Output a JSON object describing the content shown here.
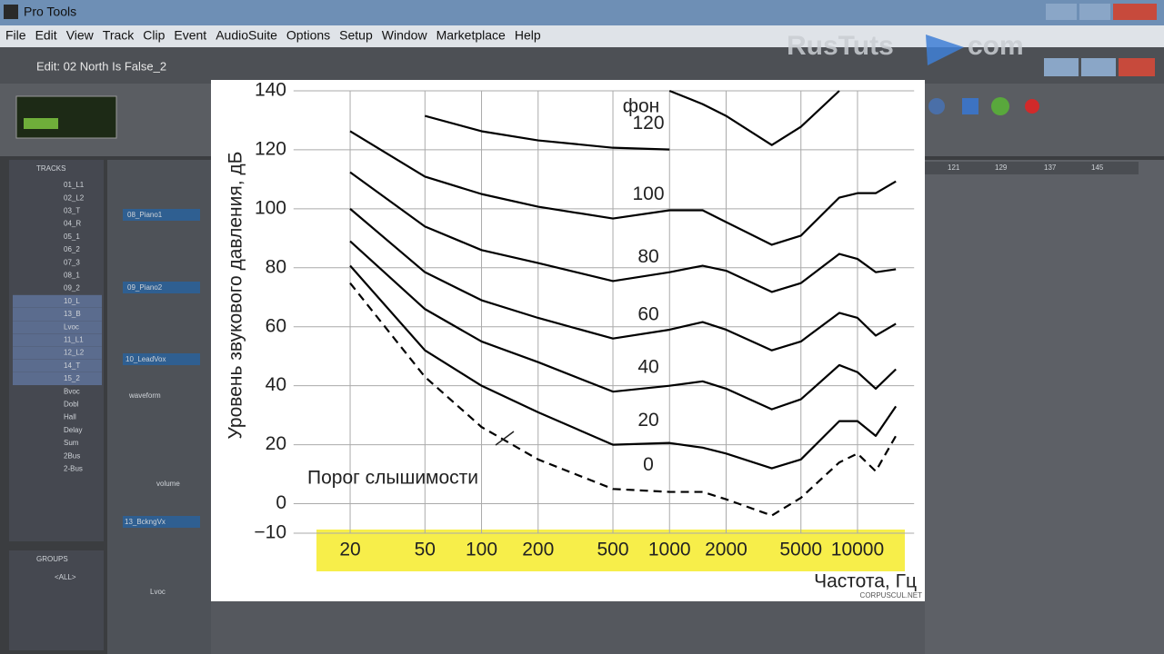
{
  "app": {
    "title": "Pro Tools",
    "menu": [
      "File",
      "Edit",
      "View",
      "Track",
      "Clip",
      "Event",
      "AudioSuite",
      "Options",
      "Setup",
      "Window",
      "Marketplace",
      "Help"
    ],
    "edit_title": "Edit: 02 North Is False_2",
    "watermark": [
      "RusTuts",
      "com"
    ],
    "tracks_header": "TRACKS",
    "track_list": [
      "01_L1",
      "02_L2",
      "03_T",
      "04_R",
      "05_1",
      "06_2",
      "07_3",
      "08_1",
      "09_2",
      "10_L",
      "13_B",
      "Lvoc",
      "11_L1",
      "12_L2",
      "14_T",
      "15_2",
      "Bvoc",
      "Dobl",
      "Hall",
      "Delay",
      "Sum",
      "2Bus",
      "2-Bus"
    ],
    "groups_header": "GROUPS",
    "groups": [
      "<ALL>"
    ],
    "track_names": [
      "08_Piano1",
      "09_Piano2",
      "10_LeadVox",
      "13_BckngVx",
      "Lvoc"
    ],
    "track_modes": [
      "waveform",
      "volume"
    ],
    "ruler": [
      "121",
      "129",
      "137",
      "145"
    ]
  },
  "chart_data": {
    "type": "line",
    "y_label": "Уровень звукового давления, дБ",
    "x_label": "Частота, Гц",
    "unit_label": "фон",
    "annotation": "Порог слышимости",
    "credit": "CORPUSCUL.NET",
    "x_log": true,
    "grid": true,
    "x": [
      20,
      50,
      100,
      200,
      500,
      1000,
      1500,
      2000,
      3500,
      5000,
      8000,
      10000,
      12500,
      16000
    ],
    "xlim": [
      10,
      20000
    ],
    "xticks": [
      20,
      50,
      100,
      200,
      500,
      1000,
      2000,
      5000,
      10000
    ],
    "ylim": [
      -10,
      140
    ],
    "yticks": [
      {
        "value": -10,
        "label": "−10"
      },
      0,
      20,
      40,
      60,
      80,
      100,
      120,
      140
    ],
    "series": [
      {
        "name": "120",
        "color": "#000000",
        "dash": false,
        "values": [
          null,
          131.5,
          126.3,
          123.2,
          120.7,
          120.1,
          null,
          null,
          null,
          null,
          null,
          null,
          null,
          null
        ]
      },
      {
        "color": "#000000",
        "dash": false,
        "values": [
          null,
          null,
          null,
          null,
          null,
          140,
          135.5,
          131.5,
          121.6,
          127.8,
          140,
          null,
          null,
          null
        ]
      },
      {
        "name": "100",
        "color": "#000000",
        "dash": false,
        "values": [
          126.3,
          110.9,
          105,
          100.7,
          96.7,
          99.5,
          99.5,
          95.5,
          87.8,
          90.9,
          103.8,
          105.3,
          105.3,
          109.3
        ]
      },
      {
        "name": "80",
        "color": "#000000",
        "dash": false,
        "values": [
          112.4,
          94,
          86,
          81.6,
          75.5,
          78.5,
          80.7,
          79,
          71.8,
          74.8,
          84.7,
          83,
          78.5,
          79.5
        ]
      },
      {
        "name": "60",
        "color": "#000000",
        "dash": false,
        "values": [
          100,
          78.5,
          69,
          63,
          56,
          59,
          61.6,
          59,
          52,
          55,
          64.7,
          63,
          57,
          61
        ]
      },
      {
        "name": "40",
        "color": "#000000",
        "dash": false,
        "values": [
          89,
          66,
          55,
          48,
          38,
          40,
          41.5,
          39,
          32,
          35.4,
          47,
          44.6,
          39,
          45.6
        ]
      },
      {
        "name": "20",
        "color": "#000000",
        "dash": false,
        "values": [
          80.7,
          52,
          40,
          31,
          20,
          20.6,
          19,
          17,
          12,
          15,
          28,
          28,
          23,
          33
        ]
      },
      {
        "name": "0",
        "color": "#000000",
        "dash": true,
        "values": [
          74.8,
          43,
          26,
          15,
          5,
          4,
          4,
          1.5,
          -4,
          2,
          14,
          17,
          11,
          23
        ]
      }
    ]
  }
}
